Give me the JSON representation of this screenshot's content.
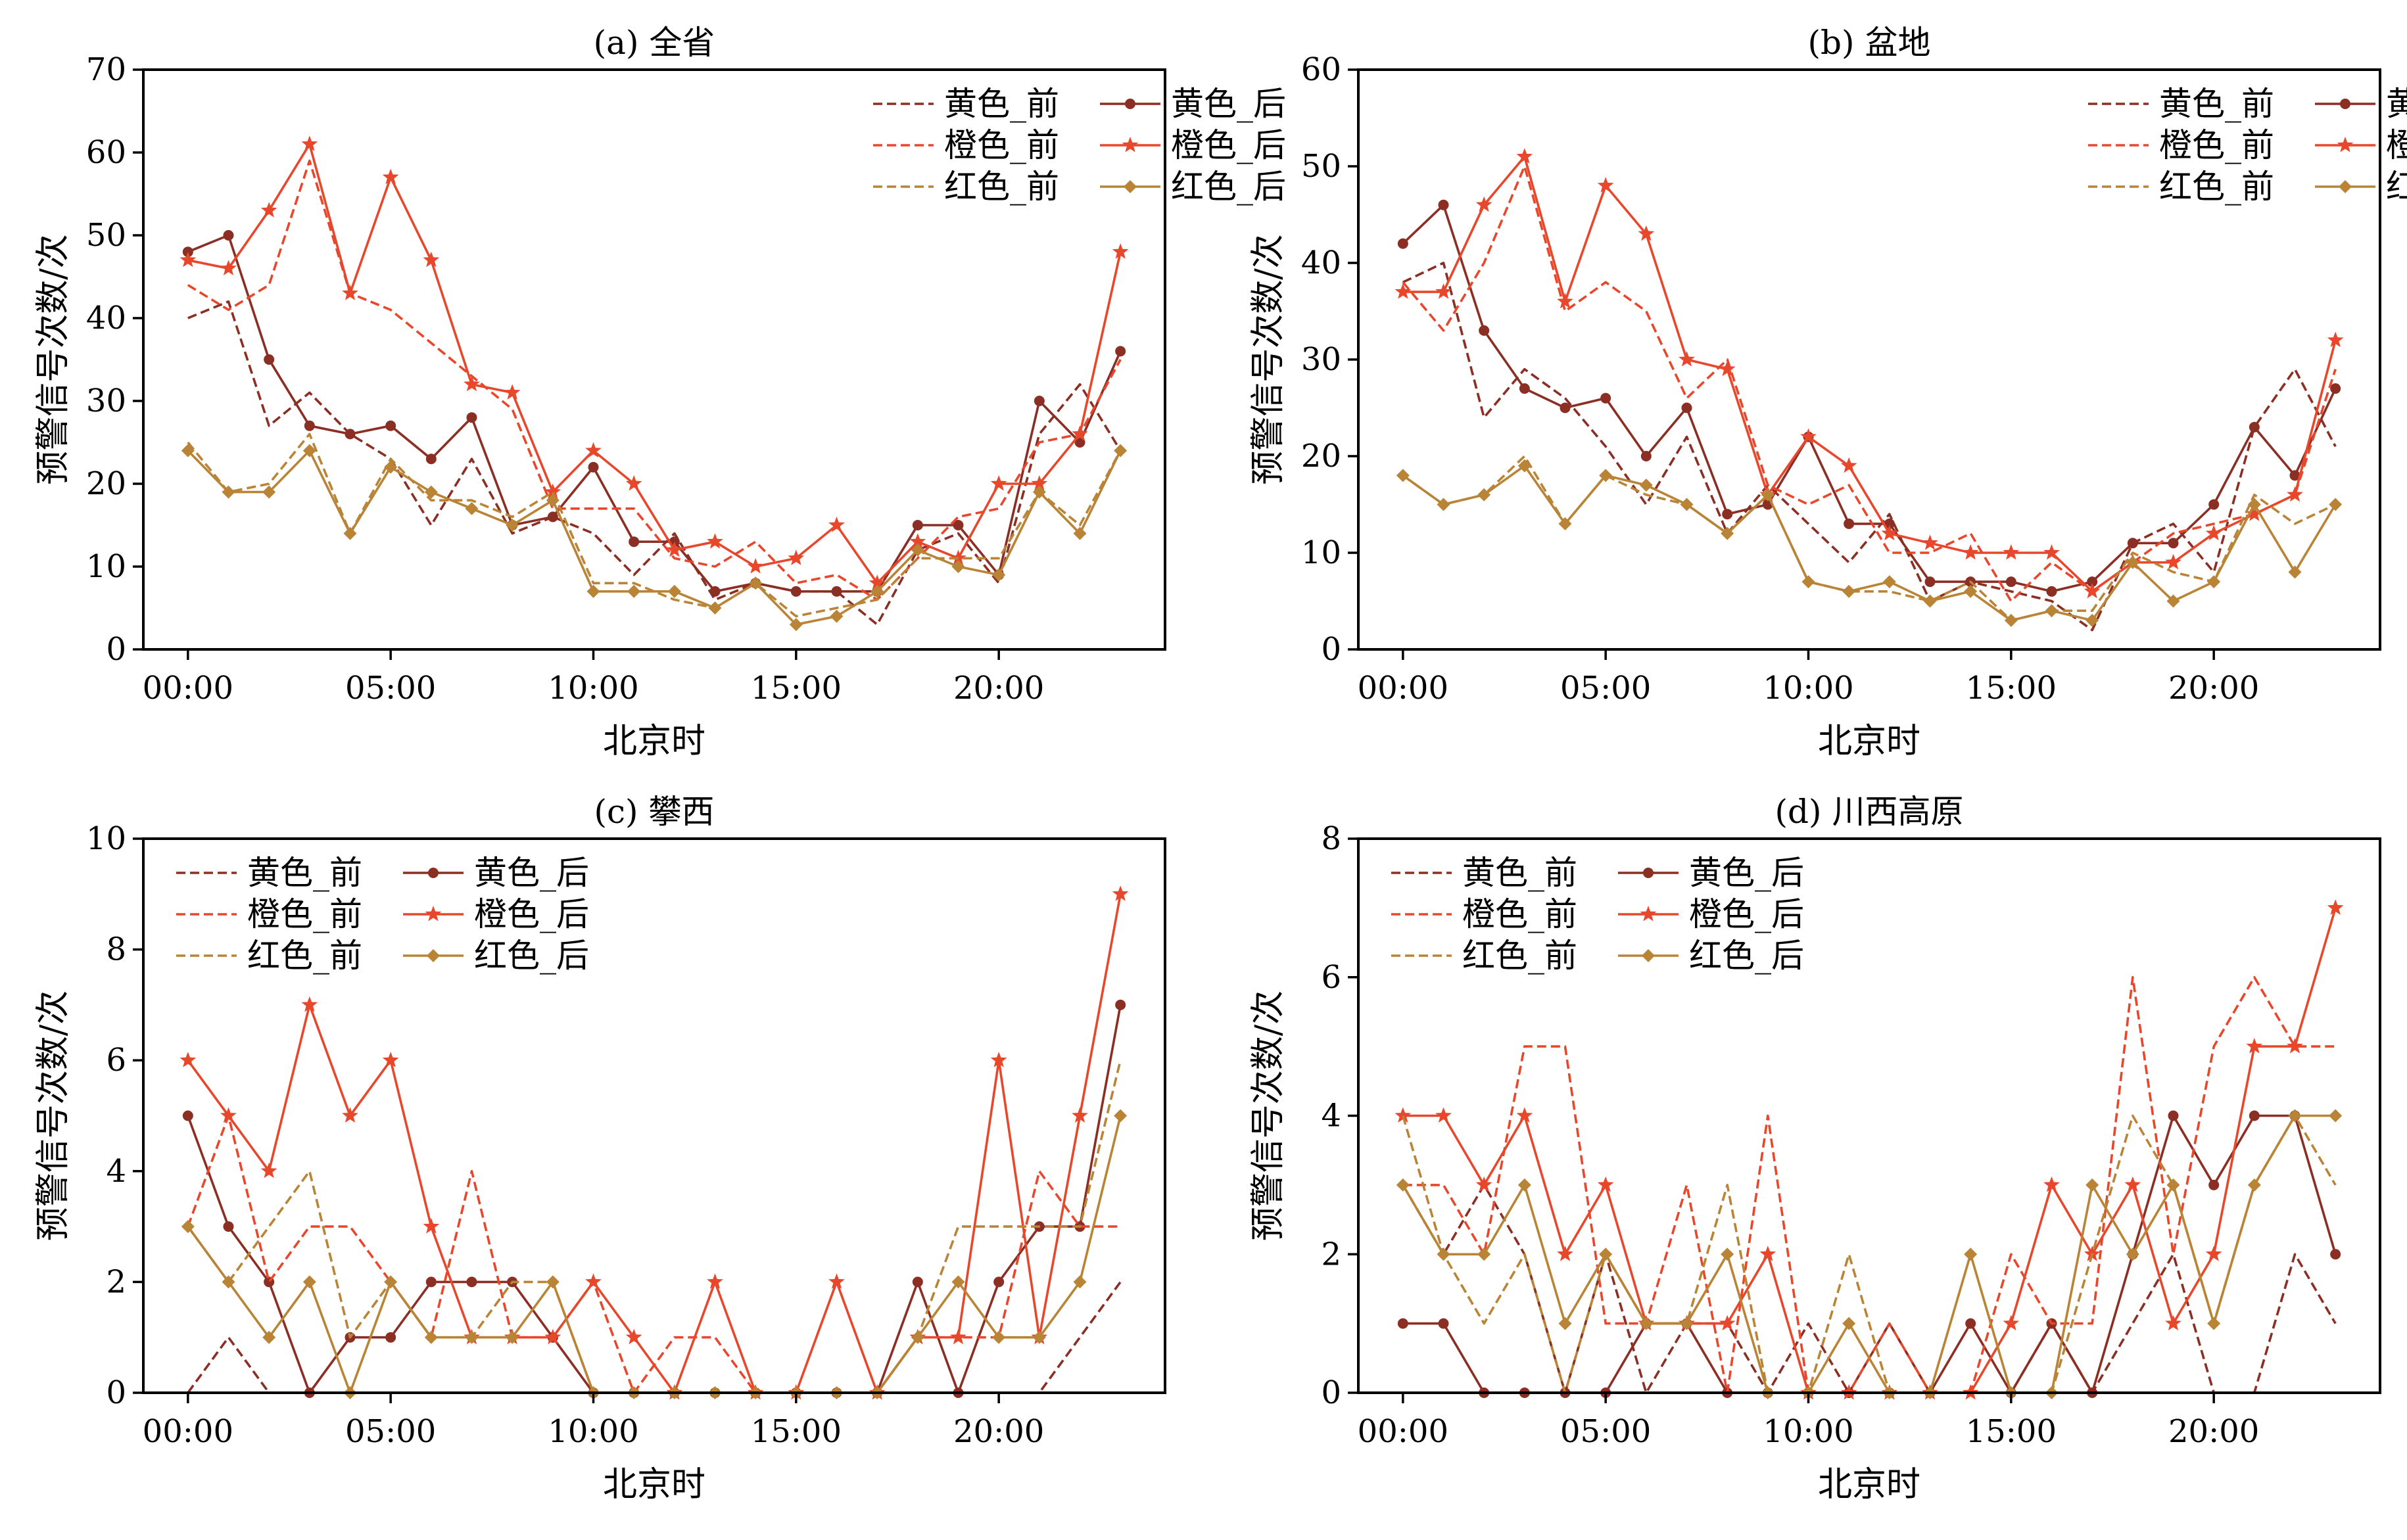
{
  "figure": {
    "xlabel": "北京时",
    "ylabel": "预警信号次数/次",
    "x_ticks": [
      "00:00",
      "05:00",
      "10:00",
      "15:00",
      "20:00"
    ]
  },
  "colors": {
    "yellow": "#8B2E24",
    "orange": "#E8472C",
    "red": "#B98436"
  },
  "chart_data": [
    {
      "type": "line",
      "title": "(a) 全省",
      "xlabel": "北京时",
      "ylabel": "预警信号次数/次",
      "x": [
        0,
        1,
        2,
        3,
        4,
        5,
        6,
        7,
        8,
        9,
        10,
        11,
        12,
        13,
        14,
        15,
        16,
        17,
        18,
        19,
        20,
        21,
        22,
        23
      ],
      "xlim": [
        -1.1,
        24.1
      ],
      "ylim": [
        0,
        70
      ],
      "yticks": [
        0,
        10,
        20,
        30,
        40,
        50,
        60,
        70
      ],
      "legend": "top-right",
      "series": [
        {
          "name": "黄色_前",
          "color": "#8B2E24",
          "style": "dashed",
          "marker": "none",
          "values": [
            40,
            42,
            27,
            31,
            26,
            23,
            15,
            23,
            14,
            16,
            14,
            9,
            14,
            6,
            8,
            7,
            7,
            3,
            12,
            14,
            8,
            26,
            32,
            24
          ]
        },
        {
          "name": "黄色_后",
          "color": "#8B2E24",
          "style": "solid",
          "marker": "circle",
          "values": [
            48,
            50,
            35,
            27,
            26,
            27,
            23,
            28,
            15,
            16,
            22,
            13,
            13,
            7,
            8,
            7,
            7,
            7,
            15,
            15,
            9,
            30,
            25,
            36
          ]
        },
        {
          "name": "橙色_前",
          "color": "#E8472C",
          "style": "dashed",
          "marker": "none",
          "values": [
            44,
            41,
            44,
            59,
            43,
            41,
            37,
            33,
            29,
            17,
            17,
            17,
            11,
            10,
            13,
            8,
            9,
            6,
            11,
            16,
            17,
            25,
            26,
            35
          ]
        },
        {
          "name": "橙色_后",
          "color": "#E8472C",
          "style": "solid",
          "marker": "star",
          "values": [
            47,
            46,
            53,
            61,
            43,
            57,
            47,
            32,
            31,
            19,
            24,
            20,
            12,
            13,
            10,
            11,
            15,
            8,
            13,
            11,
            20,
            20,
            26,
            48
          ]
        },
        {
          "name": "红色_前",
          "color": "#B98436",
          "style": "dashed",
          "marker": "none",
          "values": [
            25,
            19,
            20,
            26,
            14,
            23,
            18,
            18,
            16,
            19,
            8,
            8,
            6,
            5,
            8,
            4,
            5,
            6,
            11,
            11,
            11,
            19,
            15,
            24
          ]
        },
        {
          "name": "红色_后",
          "color": "#B98436",
          "style": "solid",
          "marker": "diamond",
          "values": [
            24,
            19,
            19,
            24,
            14,
            22,
            19,
            17,
            15,
            18,
            7,
            7,
            7,
            5,
            8,
            3,
            4,
            7,
            12,
            10,
            9,
            19,
            14,
            24
          ]
        }
      ]
    },
    {
      "type": "line",
      "title": "(b) 盆地",
      "xlabel": "北京时",
      "ylabel": "预警信号次数/次",
      "x": [
        0,
        1,
        2,
        3,
        4,
        5,
        6,
        7,
        8,
        9,
        10,
        11,
        12,
        13,
        14,
        15,
        16,
        17,
        18,
        19,
        20,
        21,
        22,
        23
      ],
      "xlim": [
        -1.1,
        24.1
      ],
      "ylim": [
        0,
        60
      ],
      "yticks": [
        0,
        10,
        20,
        30,
        40,
        50,
        60
      ],
      "legend": "top-right",
      "series": [
        {
          "name": "黄色_前",
          "color": "#8B2E24",
          "style": "dashed",
          "marker": "none",
          "values": [
            38,
            40,
            24,
            29,
            26,
            21,
            15,
            22,
            12,
            17,
            13,
            9,
            14,
            5,
            7,
            6,
            5,
            2,
            11,
            13,
            8,
            23,
            29,
            21
          ]
        },
        {
          "name": "黄色_后",
          "color": "#8B2E24",
          "style": "solid",
          "marker": "circle",
          "values": [
            42,
            46,
            33,
            27,
            25,
            26,
            20,
            25,
            14,
            15,
            22,
            13,
            13,
            7,
            7,
            7,
            6,
            7,
            11,
            11,
            15,
            23,
            18,
            27
          ]
        },
        {
          "name": "橙色_前",
          "color": "#E8472C",
          "style": "dashed",
          "marker": "none",
          "values": [
            38,
            33,
            40,
            50,
            35,
            38,
            35,
            26,
            30,
            17,
            15,
            17,
            10,
            10,
            12,
            5,
            9,
            6,
            9,
            12,
            13,
            14,
            16,
            29
          ]
        },
        {
          "name": "橙色_后",
          "color": "#E8472C",
          "style": "solid",
          "marker": "star",
          "values": [
            37,
            37,
            46,
            51,
            36,
            48,
            43,
            30,
            29,
            16,
            22,
            19,
            12,
            11,
            10,
            10,
            10,
            6,
            9,
            9,
            12,
            14,
            16,
            32
          ]
        },
        {
          "name": "红色_前",
          "color": "#B98436",
          "style": "dashed",
          "marker": "none",
          "values": [
            18,
            15,
            16,
            20,
            13,
            18,
            16,
            15,
            12,
            16,
            7,
            6,
            6,
            5,
            7,
            3,
            4,
            4,
            10,
            8,
            7,
            16,
            13,
            15
          ]
        },
        {
          "name": "红色_后",
          "color": "#B98436",
          "style": "solid",
          "marker": "diamond",
          "values": [
            18,
            15,
            16,
            19,
            13,
            18,
            17,
            15,
            12,
            16,
            7,
            6,
            7,
            5,
            6,
            3,
            4,
            3,
            9,
            5,
            7,
            15,
            8,
            15
          ]
        }
      ]
    },
    {
      "type": "line",
      "title": "(c) 攀西",
      "xlabel": "北京时",
      "ylabel": "预警信号次数/次",
      "x": [
        0,
        1,
        2,
        3,
        4,
        5,
        6,
        7,
        8,
        9,
        10,
        11,
        12,
        13,
        14,
        15,
        16,
        17,
        18,
        19,
        20,
        21,
        22,
        23
      ],
      "xlim": [
        -1.1,
        24.1
      ],
      "ylim": [
        0,
        10
      ],
      "yticks": [
        0,
        2,
        4,
        6,
        8,
        10
      ],
      "legend": "top-left",
      "series": [
        {
          "name": "黄色_前",
          "color": "#8B2E24",
          "style": "dashed",
          "marker": "none",
          "values": [
            0,
            1,
            0,
            0,
            0,
            0,
            0,
            0,
            0,
            0,
            0,
            0,
            0,
            0,
            0,
            0,
            0,
            0,
            0,
            0,
            0,
            0,
            1,
            2
          ]
        },
        {
          "name": "黄色_后",
          "color": "#8B2E24",
          "style": "solid",
          "marker": "circle",
          "values": [
            5,
            3,
            2,
            0,
            1,
            1,
            2,
            2,
            2,
            1,
            0,
            0,
            0,
            0,
            0,
            0,
            0,
            0,
            2,
            0,
            2,
            3,
            3,
            7
          ]
        },
        {
          "name": "橙色_前",
          "color": "#E8472C",
          "style": "dashed",
          "marker": "none",
          "values": [
            3,
            5,
            2,
            3,
            3,
            2,
            1,
            4,
            1,
            1,
            2,
            0,
            1,
            1,
            0,
            0,
            0,
            0,
            1,
            1,
            1,
            4,
            3,
            3
          ]
        },
        {
          "name": "橙色_后",
          "color": "#E8472C",
          "style": "solid",
          "marker": "star",
          "values": [
            6,
            5,
            4,
            7,
            5,
            6,
            3,
            1,
            1,
            1,
            2,
            1,
            0,
            2,
            0,
            0,
            2,
            0,
            1,
            1,
            6,
            1,
            5,
            9
          ]
        },
        {
          "name": "红色_前",
          "color": "#B98436",
          "style": "dashed",
          "marker": "none",
          "values": [
            3,
            2,
            3,
            4,
            1,
            2,
            1,
            1,
            2,
            2,
            0,
            0,
            0,
            0,
            0,
            0,
            0,
            0,
            1,
            3,
            3,
            3,
            3,
            6
          ]
        },
        {
          "name": "红色_后",
          "color": "#B98436",
          "style": "solid",
          "marker": "diamond",
          "values": [
            3,
            2,
            1,
            2,
            0,
            2,
            1,
            1,
            1,
            2,
            0,
            0,
            0,
            0,
            0,
            0,
            0,
            0,
            1,
            2,
            1,
            1,
            2,
            5
          ]
        }
      ]
    },
    {
      "type": "line",
      "title": "(d) 川西高原",
      "xlabel": "北京时",
      "ylabel": "预警信号次数/次",
      "x": [
        0,
        1,
        2,
        3,
        4,
        5,
        6,
        7,
        8,
        9,
        10,
        11,
        12,
        13,
        14,
        15,
        16,
        17,
        18,
        19,
        20,
        21,
        22,
        23
      ],
      "xlim": [
        -1.1,
        24.1
      ],
      "ylim": [
        0,
        8
      ],
      "yticks": [
        0,
        2,
        4,
        6,
        8
      ],
      "legend": "top-left",
      "series": [
        {
          "name": "黄色_前",
          "color": "#8B2E24",
          "style": "dashed",
          "marker": "none",
          "values": [
            3,
            2,
            3,
            2,
            0,
            2,
            0,
            1,
            1,
            0,
            1,
            0,
            1,
            0,
            0,
            0,
            1,
            0,
            1,
            2,
            0,
            0,
            2,
            1
          ]
        },
        {
          "name": "黄色_后",
          "color": "#8B2E24",
          "style": "solid",
          "marker": "circle",
          "values": [
            1,
            1,
            0,
            0,
            0,
            0,
            1,
            1,
            0,
            0,
            0,
            0,
            0,
            0,
            1,
            0,
            1,
            0,
            2,
            4,
            3,
            4,
            4,
            2
          ]
        },
        {
          "name": "橙色_前",
          "color": "#E8472C",
          "style": "dashed",
          "marker": "none",
          "values": [
            3,
            3,
            2,
            5,
            5,
            1,
            1,
            3,
            0,
            4,
            0,
            0,
            1,
            0,
            0,
            2,
            1,
            1,
            6,
            2,
            5,
            6,
            5,
            5
          ]
        },
        {
          "name": "橙色_后",
          "color": "#E8472C",
          "style": "solid",
          "marker": "star",
          "values": [
            4,
            4,
            3,
            4,
            2,
            3,
            1,
            1,
            1,
            2,
            0,
            0,
            0,
            0,
            0,
            1,
            3,
            2,
            3,
            1,
            2,
            5,
            5,
            7
          ]
        },
        {
          "name": "红色_前",
          "color": "#B98436",
          "style": "dashed",
          "marker": "none",
          "values": [
            4,
            2,
            1,
            2,
            0,
            2,
            1,
            1,
            3,
            0,
            0,
            2,
            0,
            0,
            0,
            0,
            0,
            2,
            4,
            3,
            1,
            3,
            4,
            3
          ]
        },
        {
          "name": "红色_后",
          "color": "#B98436",
          "style": "solid",
          "marker": "diamond",
          "values": [
            3,
            2,
            2,
            3,
            1,
            2,
            1,
            1,
            2,
            0,
            0,
            1,
            0,
            0,
            2,
            0,
            0,
            3,
            2,
            3,
            1,
            3,
            4,
            4
          ]
        }
      ]
    }
  ]
}
